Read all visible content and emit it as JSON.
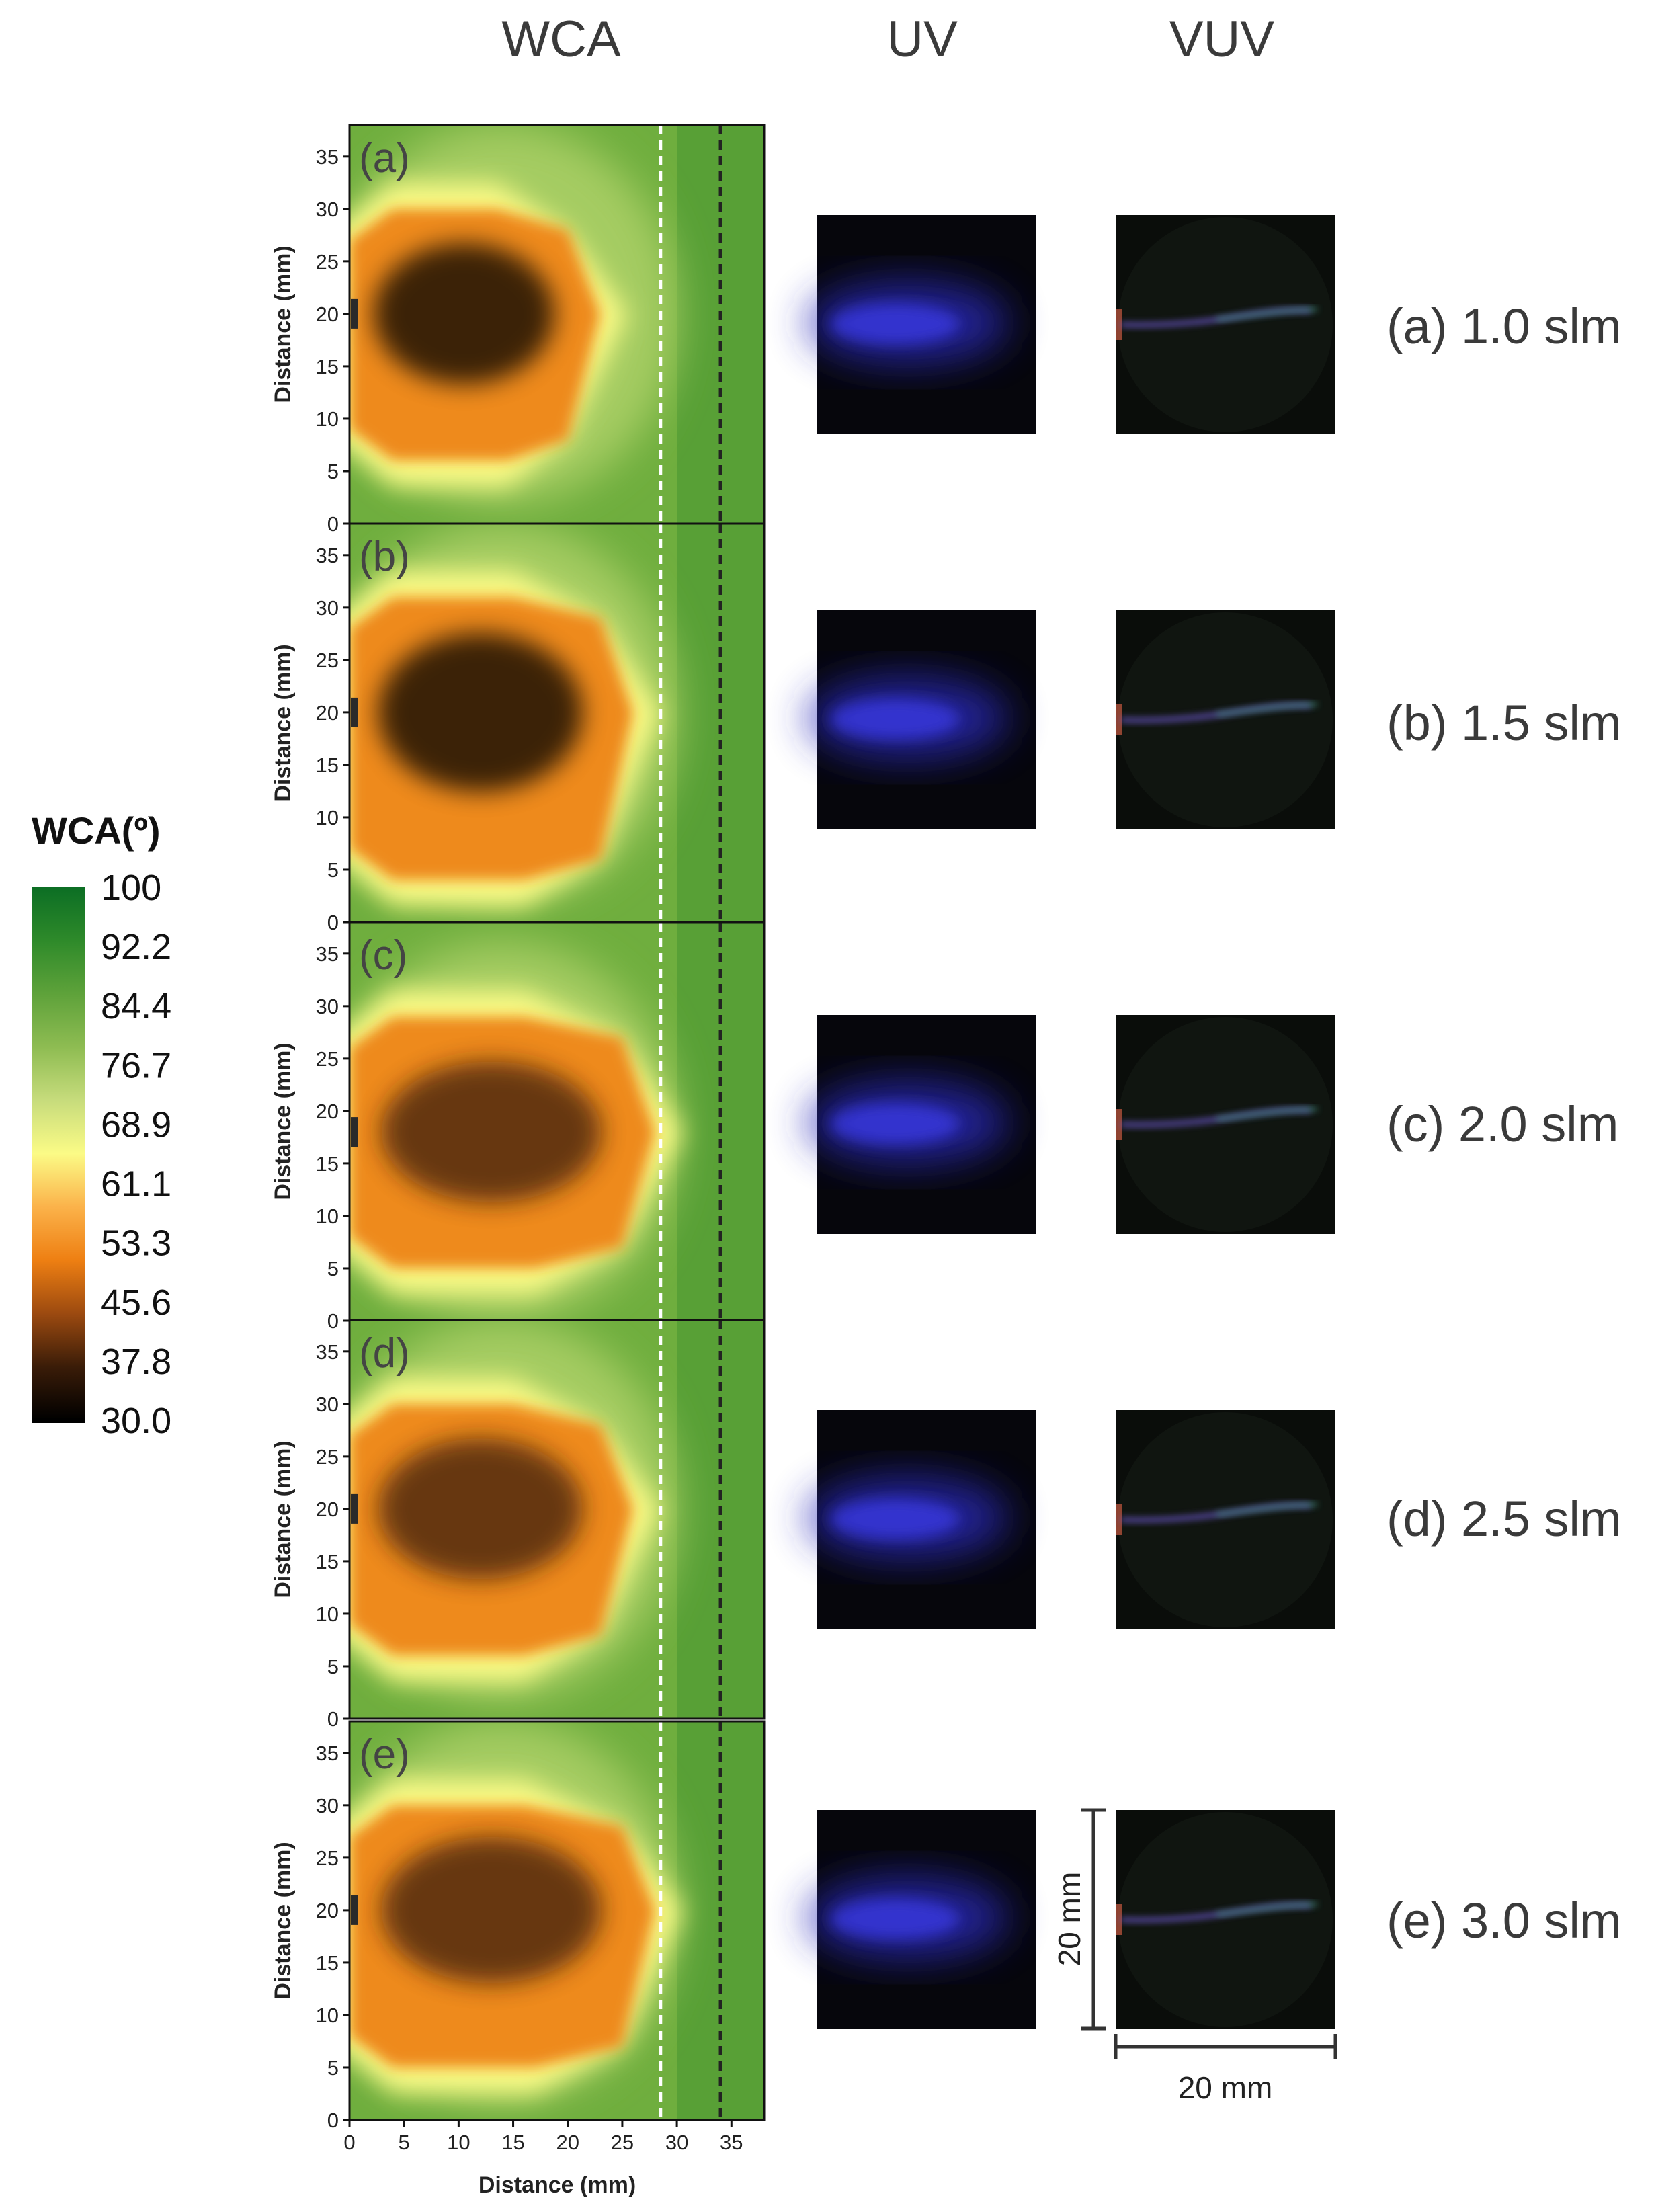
{
  "column_headers": {
    "wca": "WCA",
    "uv": "UV",
    "vuv": "VUV"
  },
  "colorbar": {
    "title": "WCA(º)",
    "ticks": [
      "100",
      "92.2",
      "84.4",
      "76.7",
      "68.9",
      "61.1",
      "53.3",
      "45.6",
      "37.8",
      "30.0"
    ],
    "colors": [
      "#0c6e24",
      "#2e8a2a",
      "#5ea23a",
      "#8ebc52",
      "#c7dc7c",
      "#fbfb86",
      "#fbb24a",
      "#ee7f12",
      "#9c4a10",
      "#3a1c08",
      "#000000"
    ]
  },
  "scale_bar": {
    "vertical": "20 mm",
    "horizontal": "20 mm"
  },
  "chart_data": {
    "type": "heatmap",
    "xlabel": "Distance (mm)",
    "ylabel": "Distance (mm)",
    "xlim": [
      0,
      38
    ],
    "ylim": [
      0,
      38
    ],
    "xticks": [
      "0",
      "5",
      "10",
      "15",
      "20",
      "25",
      "30",
      "35"
    ],
    "yticks": [
      "0",
      "5",
      "10",
      "15",
      "20",
      "25",
      "30",
      "35"
    ],
    "value_label": "WCA(º)",
    "value_range": [
      30.0,
      100
    ],
    "reference_lines_x": [
      28.5,
      34
    ],
    "panels": [
      {
        "label": "(a)",
        "flow": "(a) 1.0 slm",
        "jet_y": 20,
        "core_wca": 33,
        "region_x": [
          0,
          23
        ],
        "region_y": [
          6,
          30
        ]
      },
      {
        "label": "(b)",
        "flow": "(b) 1.5 slm",
        "jet_y": 20,
        "core_wca": 32,
        "region_x": [
          0,
          26
        ],
        "region_y": [
          4,
          31
        ]
      },
      {
        "label": "(c)",
        "flow": "(c) 2.0 slm",
        "jet_y": 18,
        "core_wca": 34,
        "region_x": [
          0,
          28
        ],
        "region_y": [
          5,
          29
        ]
      },
      {
        "label": "(d)",
        "flow": "(d) 2.5 slm",
        "jet_y": 20,
        "core_wca": 40,
        "region_x": [
          0,
          26
        ],
        "region_y": [
          6,
          30
        ]
      },
      {
        "label": "(e)",
        "flow": "(e) 3.0 slm",
        "jet_y": 20,
        "core_wca": 37,
        "region_x": [
          0,
          28
        ],
        "region_y": [
          5,
          30
        ]
      }
    ]
  }
}
